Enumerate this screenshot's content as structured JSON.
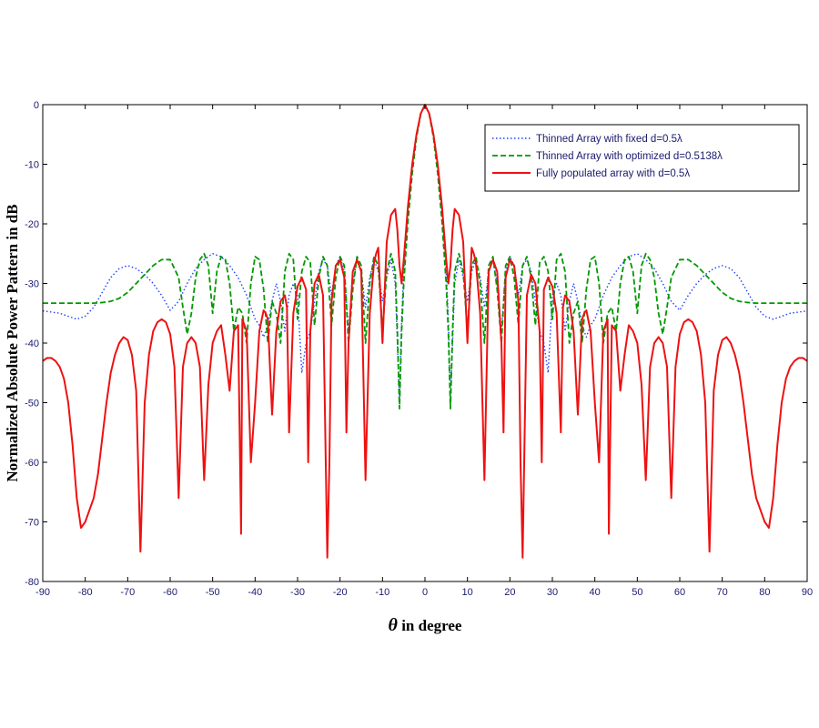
{
  "chart_data": {
    "type": "line",
    "xlabel_symbol": "θ",
    "xlabel": " in degree",
    "ylabel": "Normalized Absolute Power Pattern in dB",
    "xlim": [
      -90,
      90
    ],
    "ylim": [
      -80,
      0
    ],
    "xticks": [
      "-90",
      "-80",
      "-70",
      "-60",
      "-50",
      "-40",
      "-30",
      "-20",
      "-10",
      "0",
      "10",
      "20",
      "30",
      "40",
      "50",
      "60",
      "70",
      "80",
      "90"
    ],
    "yticks": [
      "0",
      "-10",
      "-20",
      "-30",
      "-40",
      "-50",
      "-60",
      "-70",
      "-80"
    ],
    "grid": false,
    "legend_position": "top-right",
    "series": [
      {
        "name": "Thinned Array with fixed d=0.5λ",
        "color": "#1f3fff",
        "style": "dotted",
        "x": [
          0,
          1,
          2,
          3,
          4,
          5,
          5.5,
          6,
          7,
          8,
          9,
          10,
          11,
          12,
          13,
          14,
          15,
          16,
          17,
          18,
          19,
          20,
          21,
          22,
          23,
          24,
          25,
          26,
          27,
          28,
          29,
          30,
          31,
          32,
          33,
          34,
          35,
          36,
          37,
          38,
          39,
          40,
          42,
          44,
          46,
          48,
          50,
          52,
          54,
          56,
          58,
          60,
          62,
          64,
          66,
          68,
          70,
          72,
          74,
          76,
          78,
          80,
          82,
          84,
          86,
          88,
          90
        ],
        "y": [
          0,
          -1.5,
          -5,
          -10.5,
          -18,
          -28,
          -36,
          -50,
          -30,
          -26,
          -29,
          -33,
          -28,
          -26,
          -29,
          -34,
          -28,
          -26,
          -30,
          -38,
          -28,
          -25.5,
          -27,
          -32,
          -27,
          -26,
          -28,
          -33,
          -38,
          -40,
          -45,
          -32,
          -30,
          -32,
          -38,
          -33,
          -30,
          -33,
          -37,
          -39,
          -37,
          -36,
          -32,
          -29,
          -27,
          -25.5,
          -25,
          -26,
          -27.5,
          -30,
          -33,
          -34.5,
          -32,
          -30,
          -28.5,
          -27.5,
          -27,
          -27.5,
          -29,
          -31.5,
          -34,
          -35.5,
          -36,
          -35.5,
          -35,
          -34.8,
          -34.6
        ]
      },
      {
        "name": "Thinned Array with optimized d=0.5138λ",
        "color": "#009900",
        "style": "dashed",
        "x": [
          0,
          1,
          2,
          3,
          4,
          5,
          5.5,
          6,
          6.5,
          7,
          8,
          9,
          10,
          11,
          12,
          13,
          14,
          15,
          16,
          17,
          18,
          19,
          20,
          21,
          22,
          23,
          24,
          25,
          26,
          27,
          28,
          29,
          30,
          31,
          32,
          33,
          34,
          35,
          36,
          37,
          38,
          39,
          40,
          41,
          42,
          43,
          44,
          45,
          46,
          47,
          48,
          49,
          50,
          51,
          52,
          53,
          54,
          55,
          56,
          57,
          58,
          60,
          62,
          64,
          66,
          68,
          70,
          72,
          74,
          76,
          78,
          80,
          82,
          84,
          86,
          88,
          90
        ],
        "y": [
          0,
          -1.6,
          -5.5,
          -11.5,
          -19.5,
          -30,
          -38,
          -51,
          -38,
          -28,
          -25,
          -28,
          -38,
          -27,
          -25.5,
          -30,
          -40,
          -27,
          -25.5,
          -31,
          -40,
          -27,
          -25.5,
          -29,
          -37,
          -27,
          -25.5,
          -29,
          -37,
          -26.5,
          -25.5,
          -28,
          -36,
          -26,
          -25,
          -28,
          -40,
          -35,
          -33,
          -40,
          -31,
          -26,
          -25.5,
          -30,
          -40,
          -35,
          -34,
          -38,
          -30,
          -26,
          -25.5,
          -28,
          -35,
          -27,
          -25,
          -26,
          -29,
          -35,
          -38.5,
          -34,
          -29,
          -26,
          -26,
          -27,
          -28.5,
          -30,
          -31.5,
          -32.5,
          -33,
          -33.2,
          -33.3,
          -33.3,
          -33.3,
          -33.3,
          -33.3,
          -33.3,
          -33.3
        ]
      },
      {
        "name": "Fully populated array with d=0.5λ",
        "color": "#ee1111",
        "style": "solid",
        "x": [
          0,
          1,
          2,
          3,
          4,
          5,
          5.5,
          6,
          6.5,
          7,
          8,
          9,
          10,
          11,
          11.5,
          12,
          13,
          14,
          15,
          16,
          17,
          18,
          18.5,
          19,
          20,
          21,
          22,
          22.5,
          23,
          24,
          25,
          26,
          27,
          27.5,
          28,
          29,
          30,
          31,
          32,
          32.5,
          33,
          34,
          35,
          36,
          37,
          37.5,
          38,
          39,
          40,
          41,
          42,
          43,
          43.3,
          44,
          45,
          46,
          47,
          48,
          49,
          50,
          51,
          52,
          53,
          54,
          55,
          56,
          57,
          58,
          59,
          60,
          61,
          62,
          63,
          64,
          65,
          66,
          67,
          68,
          69,
          70,
          71,
          72,
          73,
          74,
          75,
          76,
          77,
          78,
          79,
          80,
          81,
          82,
          83,
          84,
          85,
          86,
          87,
          88,
          89,
          90
        ],
        "y": [
          0,
          -1.5,
          -5,
          -10,
          -17,
          -26,
          -30,
          -27,
          -21,
          -17.5,
          -18.5,
          -23,
          -40,
          -24,
          -25,
          -26.5,
          -35,
          -63,
          -28,
          -26,
          -28,
          -40,
          -55,
          -29,
          -26,
          -27,
          -33,
          -60,
          -76,
          -32,
          -28.5,
          -30,
          -38,
          -60,
          -31,
          -29,
          -30.5,
          -35,
          -55,
          -34,
          -32,
          -33,
          -38,
          -52,
          -36,
          -35,
          -34.5,
          -38,
          -50,
          -60,
          -38,
          -36,
          -72,
          -37,
          -38,
          -48,
          -42,
          -37,
          -38,
          -40,
          -47,
          -63,
          -44,
          -40,
          -39,
          -40,
          -44,
          -66,
          -44,
          -38.5,
          -36.5,
          -36,
          -36.5,
          -38,
          -42,
          -50,
          -75,
          -48,
          -42,
          -39.5,
          -39,
          -40,
          -42,
          -45,
          -50,
          -56,
          -62,
          -66,
          -68,
          -70,
          -71,
          -66,
          -57,
          -50,
          -46,
          -44,
          -43,
          -42.5,
          -42.5,
          -43
        ]
      }
    ]
  }
}
